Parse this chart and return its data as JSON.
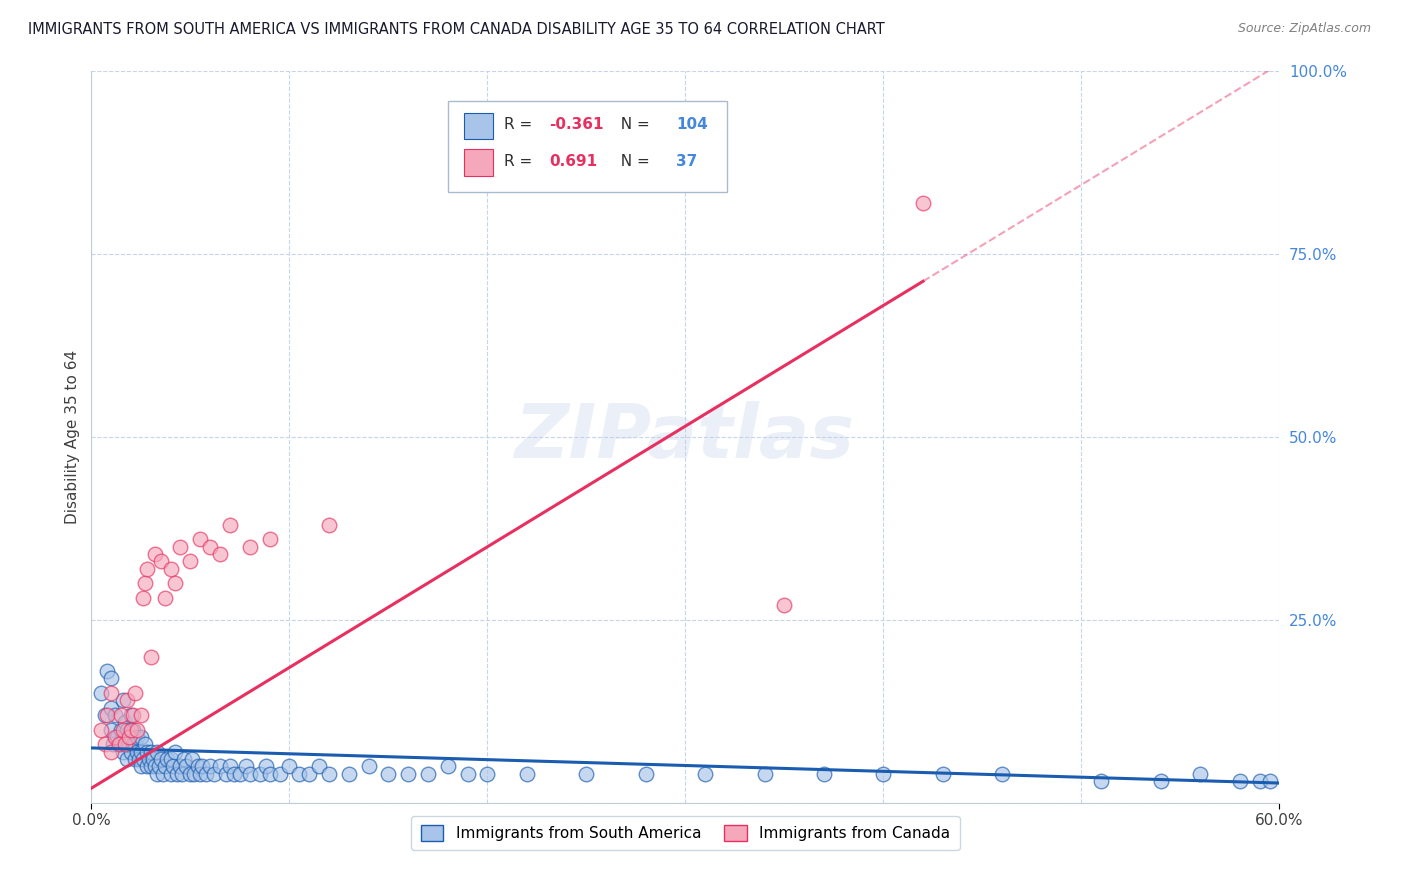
{
  "title": "IMMIGRANTS FROM SOUTH AMERICA VS IMMIGRANTS FROM CANADA DISABILITY AGE 35 TO 64 CORRELATION CHART",
  "source": "Source: ZipAtlas.com",
  "ylabel": "Disability Age 35 to 64",
  "xlim": [
    0.0,
    0.6
  ],
  "ylim": [
    0.0,
    1.0
  ],
  "blue_R": -0.361,
  "blue_N": 104,
  "pink_R": 0.691,
  "pink_N": 37,
  "blue_color": "#a8c4e8",
  "pink_color": "#f5a8bc",
  "blue_line_color": "#1a5cb0",
  "pink_line_color": "#e83060",
  "grid_color": "#c8d4e8",
  "title_color": "#1a1a2e",
  "right_tick_color": "#4488dd",
  "legend_label_blue": "Immigrants from South America",
  "legend_label_pink": "Immigrants from Canada",
  "watermark": "ZIPatlas",
  "blue_scatter_x": [
    0.005,
    0.007,
    0.008,
    0.01,
    0.01,
    0.01,
    0.011,
    0.012,
    0.013,
    0.015,
    0.015,
    0.016,
    0.016,
    0.017,
    0.017,
    0.018,
    0.018,
    0.019,
    0.02,
    0.02,
    0.02,
    0.021,
    0.021,
    0.022,
    0.022,
    0.023,
    0.023,
    0.024,
    0.025,
    0.025,
    0.025,
    0.026,
    0.027,
    0.028,
    0.028,
    0.029,
    0.03,
    0.03,
    0.031,
    0.032,
    0.033,
    0.033,
    0.034,
    0.035,
    0.036,
    0.037,
    0.038,
    0.04,
    0.04,
    0.041,
    0.042,
    0.043,
    0.045,
    0.046,
    0.047,
    0.048,
    0.05,
    0.051,
    0.052,
    0.054,
    0.055,
    0.056,
    0.058,
    0.06,
    0.062,
    0.065,
    0.068,
    0.07,
    0.072,
    0.075,
    0.078,
    0.08,
    0.085,
    0.088,
    0.09,
    0.095,
    0.1,
    0.105,
    0.11,
    0.115,
    0.12,
    0.13,
    0.14,
    0.15,
    0.16,
    0.17,
    0.18,
    0.19,
    0.2,
    0.22,
    0.25,
    0.28,
    0.31,
    0.34,
    0.37,
    0.4,
    0.43,
    0.46,
    0.51,
    0.54,
    0.56,
    0.58,
    0.59,
    0.595
  ],
  "blue_scatter_y": [
    0.15,
    0.12,
    0.18,
    0.1,
    0.13,
    0.17,
    0.08,
    0.12,
    0.09,
    0.1,
    0.08,
    0.07,
    0.14,
    0.09,
    0.11,
    0.06,
    0.1,
    0.08,
    0.07,
    0.09,
    0.12,
    0.08,
    0.1,
    0.06,
    0.08,
    0.07,
    0.09,
    0.06,
    0.05,
    0.07,
    0.09,
    0.06,
    0.08,
    0.05,
    0.07,
    0.06,
    0.05,
    0.07,
    0.06,
    0.05,
    0.04,
    0.07,
    0.05,
    0.06,
    0.04,
    0.05,
    0.06,
    0.04,
    0.06,
    0.05,
    0.07,
    0.04,
    0.05,
    0.04,
    0.06,
    0.05,
    0.04,
    0.06,
    0.04,
    0.05,
    0.04,
    0.05,
    0.04,
    0.05,
    0.04,
    0.05,
    0.04,
    0.05,
    0.04,
    0.04,
    0.05,
    0.04,
    0.04,
    0.05,
    0.04,
    0.04,
    0.05,
    0.04,
    0.04,
    0.05,
    0.04,
    0.04,
    0.05,
    0.04,
    0.04,
    0.04,
    0.05,
    0.04,
    0.04,
    0.04,
    0.04,
    0.04,
    0.04,
    0.04,
    0.04,
    0.04,
    0.04,
    0.04,
    0.03,
    0.03,
    0.04,
    0.03,
    0.03,
    0.03
  ],
  "pink_scatter_x": [
    0.005,
    0.007,
    0.008,
    0.01,
    0.01,
    0.012,
    0.014,
    0.015,
    0.016,
    0.017,
    0.018,
    0.019,
    0.02,
    0.021,
    0.022,
    0.023,
    0.025,
    0.026,
    0.027,
    0.028,
    0.03,
    0.032,
    0.035,
    0.037,
    0.04,
    0.042,
    0.045,
    0.05,
    0.055,
    0.06,
    0.065,
    0.07,
    0.08,
    0.09,
    0.12,
    0.35,
    0.42
  ],
  "pink_scatter_y": [
    0.1,
    0.08,
    0.12,
    0.07,
    0.15,
    0.09,
    0.08,
    0.12,
    0.1,
    0.08,
    0.14,
    0.09,
    0.1,
    0.12,
    0.15,
    0.1,
    0.12,
    0.28,
    0.3,
    0.32,
    0.2,
    0.34,
    0.33,
    0.28,
    0.32,
    0.3,
    0.35,
    0.33,
    0.36,
    0.35,
    0.34,
    0.38,
    0.35,
    0.36,
    0.38,
    0.27,
    0.82
  ],
  "pink_line_slope": 1.65,
  "pink_line_intercept": 0.02,
  "blue_line_slope": -0.08,
  "blue_line_intercept": 0.075
}
